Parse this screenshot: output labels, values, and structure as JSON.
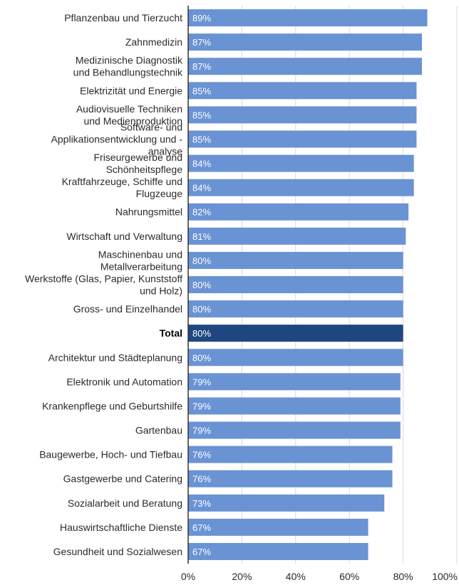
{
  "chart_data": {
    "type": "bar",
    "orientation": "horizontal",
    "title": "",
    "xlabel": "",
    "ylabel": "",
    "xlim": [
      0,
      100
    ],
    "x_ticks": [
      "0%",
      "20%",
      "40%",
      "60%",
      "80%",
      "100%"
    ],
    "grid": "vertical",
    "colors": {
      "bar": "#6a93d4",
      "highlight": "#1f477f",
      "grid": "#d9d9d9",
      "axis": "#333333"
    },
    "categories": [
      {
        "label": [
          "Pflanzenbau und Tierzucht"
        ],
        "value": 89,
        "value_label": "89%",
        "highlight": false
      },
      {
        "label": [
          "Zahnmedizin"
        ],
        "value": 87,
        "value_label": "87%",
        "highlight": false
      },
      {
        "label": [
          "Medizinische Diagnostik",
          "und Behandlungstechnik"
        ],
        "value": 87,
        "value_label": "87%",
        "highlight": false
      },
      {
        "label": [
          "Elektrizität und Energie"
        ],
        "value": 85,
        "value_label": "85%",
        "highlight": false
      },
      {
        "label": [
          "Audiovisuelle Techniken",
          "und Medienproduktion"
        ],
        "value": 85,
        "value_label": "85%",
        "highlight": false
      },
      {
        "label": [
          "Software- und",
          "Applikationsentwicklung und -",
          "analyse"
        ],
        "value": 85,
        "value_label": "85%",
        "highlight": false
      },
      {
        "label": [
          "Friseurgewerbe und",
          "Schönheitspflege"
        ],
        "value": 84,
        "value_label": "84%",
        "highlight": false
      },
      {
        "label": [
          "Kraftfahrzeuge, Schiffe und",
          "Flugzeuge"
        ],
        "value": 84,
        "value_label": "84%",
        "highlight": false
      },
      {
        "label": [
          "Nahrungsmittel"
        ],
        "value": 82,
        "value_label": "82%",
        "highlight": false
      },
      {
        "label": [
          "Wirtschaft und Verwaltung"
        ],
        "value": 81,
        "value_label": "81%",
        "highlight": false
      },
      {
        "label": [
          "Maschinenbau und",
          "Metallverarbeitung"
        ],
        "value": 80,
        "value_label": "80%",
        "highlight": false
      },
      {
        "label": [
          "Werkstoffe (Glas, Papier, Kunststoff",
          "und Holz)"
        ],
        "value": 80,
        "value_label": "80%",
        "highlight": false
      },
      {
        "label": [
          "Gross- und Einzelhandel"
        ],
        "value": 80,
        "value_label": "80%",
        "highlight": false
      },
      {
        "label": [
          "Total"
        ],
        "value": 80,
        "value_label": "80%",
        "highlight": true
      },
      {
        "label": [
          "Architektur und Städteplanung"
        ],
        "value": 80,
        "value_label": "80%",
        "highlight": false
      },
      {
        "label": [
          "Elektronik und Automation"
        ],
        "value": 79,
        "value_label": "79%",
        "highlight": false
      },
      {
        "label": [
          "Krankenpflege und Geburtshilfe"
        ],
        "value": 79,
        "value_label": "79%",
        "highlight": false
      },
      {
        "label": [
          "Gartenbau"
        ],
        "value": 79,
        "value_label": "79%",
        "highlight": false
      },
      {
        "label": [
          "Baugewerbe, Hoch- und Tiefbau"
        ],
        "value": 76,
        "value_label": "76%",
        "highlight": false
      },
      {
        "label": [
          "Gastgewerbe und Catering"
        ],
        "value": 76,
        "value_label": "76%",
        "highlight": false
      },
      {
        "label": [
          "Sozialarbeit und Beratung"
        ],
        "value": 73,
        "value_label": "73%",
        "highlight": false
      },
      {
        "label": [
          "Hauswirtschaftliche Dienste"
        ],
        "value": 67,
        "value_label": "67%",
        "highlight": false
      },
      {
        "label": [
          "Gesundheit und Sozialwesen"
        ],
        "value": 67,
        "value_label": "67%",
        "highlight": false
      }
    ]
  }
}
